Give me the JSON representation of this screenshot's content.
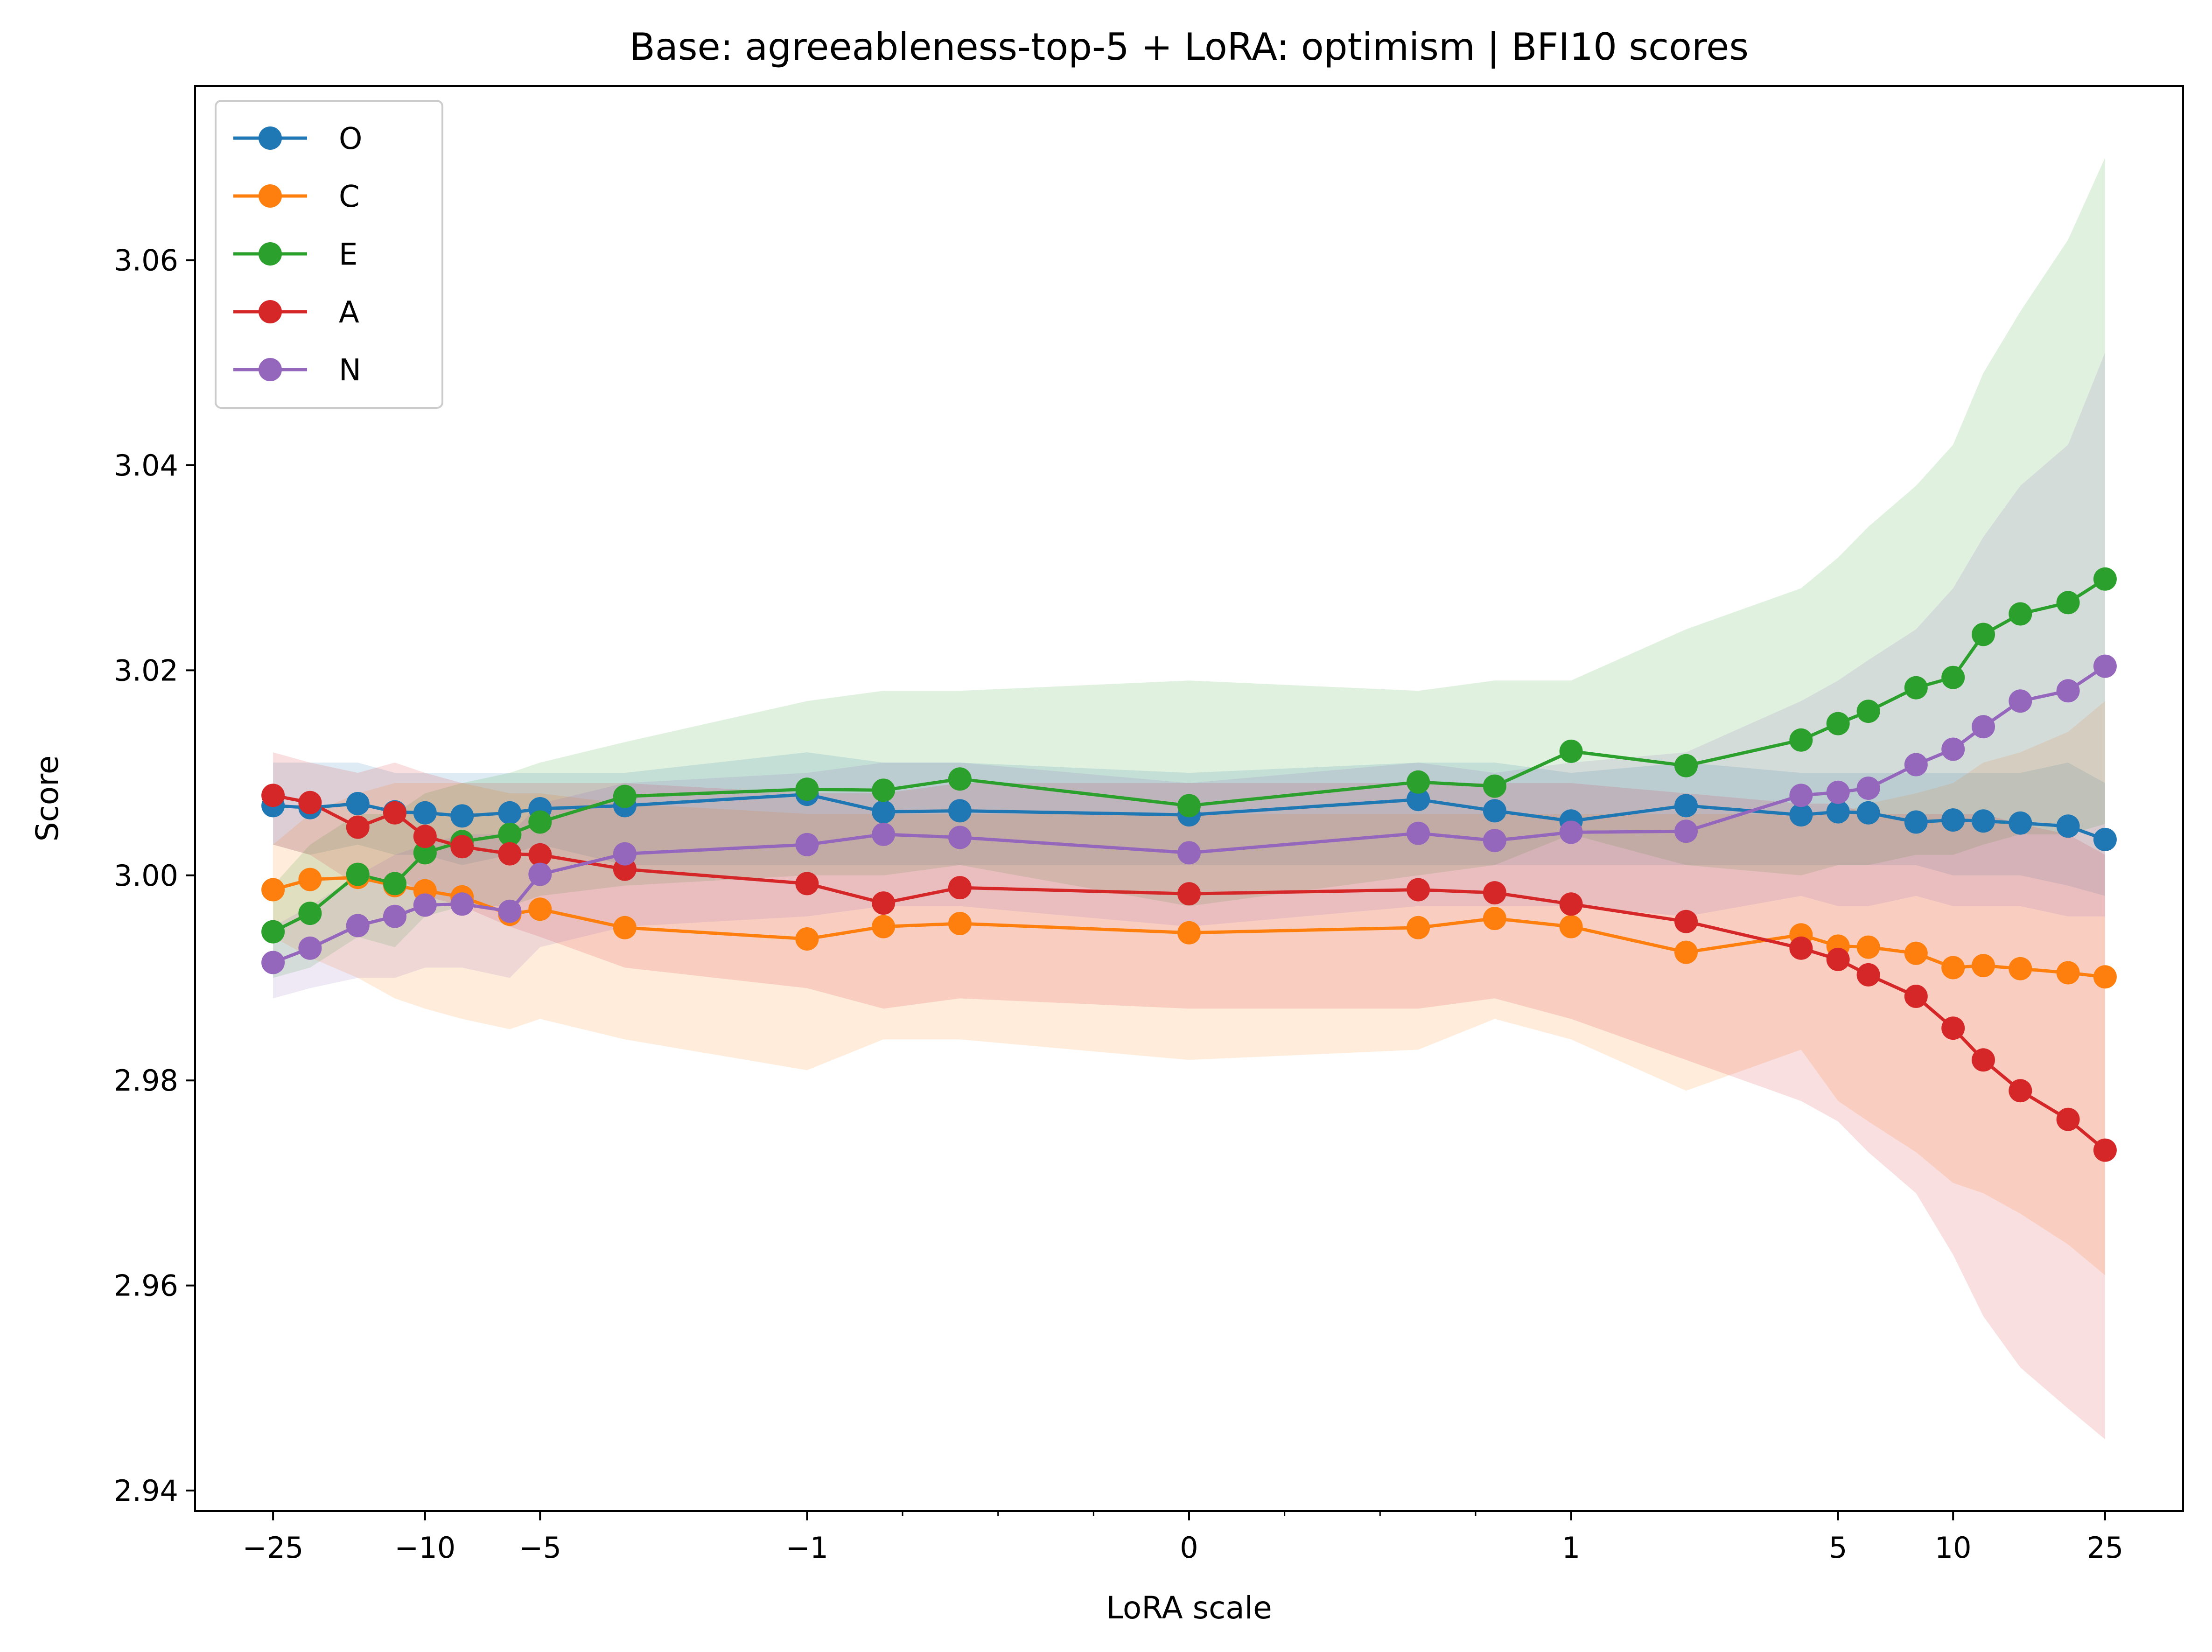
{
  "chart_data": {
    "type": "line",
    "title": "Base: agreeableness-top-5 + LoRA: optimism | BFI10 scores",
    "xlabel": "LoRA scale",
    "ylabel": "Score",
    "x_scale": "symlog",
    "xlim": [
      -40,
      40
    ],
    "ylim": [
      2.938,
      3.077
    ],
    "legend_position": "upper-left",
    "x_major_ticks": [
      {
        "value": -25,
        "label": "−25"
      },
      {
        "value": -10,
        "label": "−10"
      },
      {
        "value": -5,
        "label": "−5"
      },
      {
        "value": -1,
        "label": "−1"
      },
      {
        "value": 0,
        "label": "0"
      },
      {
        "value": 1,
        "label": "1"
      },
      {
        "value": 5,
        "label": "5"
      },
      {
        "value": 10,
        "label": "10"
      },
      {
        "value": 25,
        "label": "25"
      }
    ],
    "x_minor_ticks": [
      -0.75,
      -0.5,
      -0.25,
      0.25,
      0.5,
      0.75
    ],
    "y_ticks": [
      {
        "value": 2.94,
        "label": "2.94"
      },
      {
        "value": 2.96,
        "label": "2.96"
      },
      {
        "value": 2.98,
        "label": "2.98"
      },
      {
        "value": 3.0,
        "label": "3.00"
      },
      {
        "value": 3.02,
        "label": "3.02"
      },
      {
        "value": 3.04,
        "label": "3.04"
      },
      {
        "value": 3.06,
        "label": "3.06"
      }
    ],
    "x": [
      -25,
      -20,
      -15,
      -12,
      -10,
      -8,
      -6,
      -5,
      -3,
      -1,
      -0.8,
      -0.6,
      0,
      0.6,
      0.8,
      1,
      2,
      4,
      5,
      6,
      8,
      10,
      12,
      15,
      20,
      25
    ],
    "series": [
      {
        "name": "O",
        "color": "#1f77b4",
        "values": [
          3.0068,
          3.0066,
          3.007,
          3.0062,
          3.0061,
          3.0058,
          3.0061,
          3.0065,
          3.0068,
          3.0079,
          3.0062,
          3.0063,
          3.0059,
          3.0074,
          3.0063,
          3.0053,
          3.0068,
          3.0059,
          3.0062,
          3.0061,
          3.0052,
          3.0054,
          3.0053,
          3.0051,
          3.0048,
          3.0035
        ],
        "band_lower": [
          3.003,
          3.002,
          3.003,
          3.002,
          3.002,
          3.001,
          3.002,
          3.003,
          3.001,
          3.001,
          3.001,
          3.001,
          3.001,
          3.001,
          3.001,
          3.001,
          3.001,
          3.001,
          3.001,
          3.001,
          3.001,
          3.0,
          3.0,
          3.0,
          2.999,
          2.998
        ],
        "band_upper": [
          3.011,
          3.011,
          3.011,
          3.01,
          3.01,
          3.01,
          3.01,
          3.01,
          3.01,
          3.012,
          3.011,
          3.011,
          3.01,
          3.011,
          3.011,
          3.01,
          3.011,
          3.01,
          3.01,
          3.01,
          3.01,
          3.01,
          3.01,
          3.01,
          3.011,
          3.009
        ]
      },
      {
        "name": "C",
        "color": "#ff7f0e",
        "values": [
          2.9986,
          2.9996,
          2.9998,
          2.999,
          2.9985,
          2.9979,
          2.9962,
          2.9967,
          2.9949,
          2.9938,
          2.995,
          2.9953,
          2.9944,
          2.9949,
          2.9958,
          2.995,
          2.9925,
          2.9942,
          2.9931,
          2.993,
          2.9924,
          2.991,
          2.9912,
          2.9909,
          2.9905,
          2.9901
        ],
        "band_lower": [
          2.994,
          2.992,
          2.99,
          2.988,
          2.987,
          2.986,
          2.985,
          2.986,
          2.984,
          2.981,
          2.984,
          2.984,
          2.982,
          2.983,
          2.986,
          2.984,
          2.979,
          2.983,
          2.978,
          2.976,
          2.973,
          2.97,
          2.969,
          2.967,
          2.964,
          2.961
        ],
        "band_upper": [
          3.003,
          3.006,
          3.008,
          3.009,
          3.009,
          3.009,
          3.008,
          3.008,
          3.007,
          3.006,
          3.006,
          3.006,
          3.006,
          3.006,
          3.006,
          3.006,
          3.006,
          3.006,
          3.006,
          3.007,
          3.008,
          3.009,
          3.011,
          3.012,
          3.014,
          3.017
        ]
      },
      {
        "name": "E",
        "color": "#2ca02c",
        "values": [
          2.9945,
          2.9963,
          3.0001,
          2.9992,
          3.0022,
          3.0033,
          3.004,
          3.0052,
          3.0077,
          3.0084,
          3.0083,
          3.0094,
          3.0068,
          3.0091,
          3.0087,
          3.0121,
          3.0107,
          3.0132,
          3.0148,
          3.016,
          3.0183,
          3.0193,
          3.0235,
          3.0255,
          3.0266,
          3.0289
        ],
        "band_lower": [
          2.99,
          2.991,
          2.994,
          2.993,
          2.996,
          2.997,
          2.997,
          2.998,
          2.999,
          3.0,
          3.0,
          3.001,
          2.997,
          3.0,
          3.001,
          3.004,
          3.001,
          3.0,
          3.001,
          3.001,
          3.002,
          3.002,
          3.003,
          3.004,
          3.004,
          3.005
        ],
        "band_upper": [
          2.999,
          3.003,
          3.006,
          3.006,
          3.008,
          3.009,
          3.01,
          3.011,
          3.013,
          3.017,
          3.018,
          3.018,
          3.019,
          3.018,
          3.019,
          3.019,
          3.024,
          3.028,
          3.031,
          3.034,
          3.038,
          3.042,
          3.049,
          3.055,
          3.062,
          3.07
        ]
      },
      {
        "name": "A",
        "color": "#d62728",
        "values": [
          3.0078,
          3.0071,
          3.0047,
          3.0061,
          3.0038,
          3.0028,
          3.0021,
          3.002,
          3.0006,
          2.9992,
          2.9973,
          2.9988,
          2.9982,
          2.9986,
          2.9983,
          2.9972,
          2.9955,
          2.9929,
          2.9918,
          2.9903,
          2.9882,
          2.9851,
          2.982,
          2.979,
          2.9762,
          2.9732
        ],
        "band_lower": [
          3.003,
          3.002,
          2.999,
          3.0,
          2.998,
          2.997,
          2.995,
          2.994,
          2.991,
          2.989,
          2.987,
          2.988,
          2.987,
          2.987,
          2.988,
          2.986,
          2.982,
          2.978,
          2.976,
          2.973,
          2.969,
          2.963,
          2.957,
          2.952,
          2.948,
          2.945
        ],
        "band_upper": [
          3.012,
          3.011,
          3.01,
          3.011,
          3.01,
          3.009,
          3.009,
          3.009,
          3.009,
          3.008,
          3.008,
          3.009,
          3.009,
          3.009,
          3.009,
          3.009,
          3.008,
          3.007,
          3.007,
          3.006,
          3.006,
          3.006,
          3.006,
          3.005,
          3.004,
          3.002
        ]
      },
      {
        "name": "N",
        "color": "#9467bd",
        "values": [
          2.9915,
          2.9929,
          2.9951,
          2.996,
          2.9971,
          2.9972,
          2.9965,
          3.0001,
          3.0021,
          3.003,
          3.004,
          3.0037,
          3.0022,
          3.0041,
          3.0034,
          3.0042,
          3.0043,
          3.0078,
          3.0081,
          3.0085,
          3.0108,
          3.0123,
          3.0145,
          3.017,
          3.018,
          3.0204
        ],
        "band_lower": [
          2.988,
          2.989,
          2.99,
          2.99,
          2.991,
          2.991,
          2.99,
          2.993,
          2.995,
          2.996,
          2.997,
          2.997,
          2.995,
          2.997,
          2.997,
          2.997,
          2.996,
          2.998,
          2.997,
          2.997,
          2.998,
          2.997,
          2.997,
          2.997,
          2.996,
          2.996
        ],
        "band_upper": [
          2.995,
          2.997,
          3.0,
          3.002,
          3.003,
          3.004,
          3.004,
          3.007,
          3.009,
          3.01,
          3.011,
          3.011,
          3.009,
          3.011,
          3.01,
          3.011,
          3.012,
          3.017,
          3.019,
          3.021,
          3.024,
          3.028,
          3.033,
          3.038,
          3.042,
          3.051
        ]
      }
    ]
  }
}
